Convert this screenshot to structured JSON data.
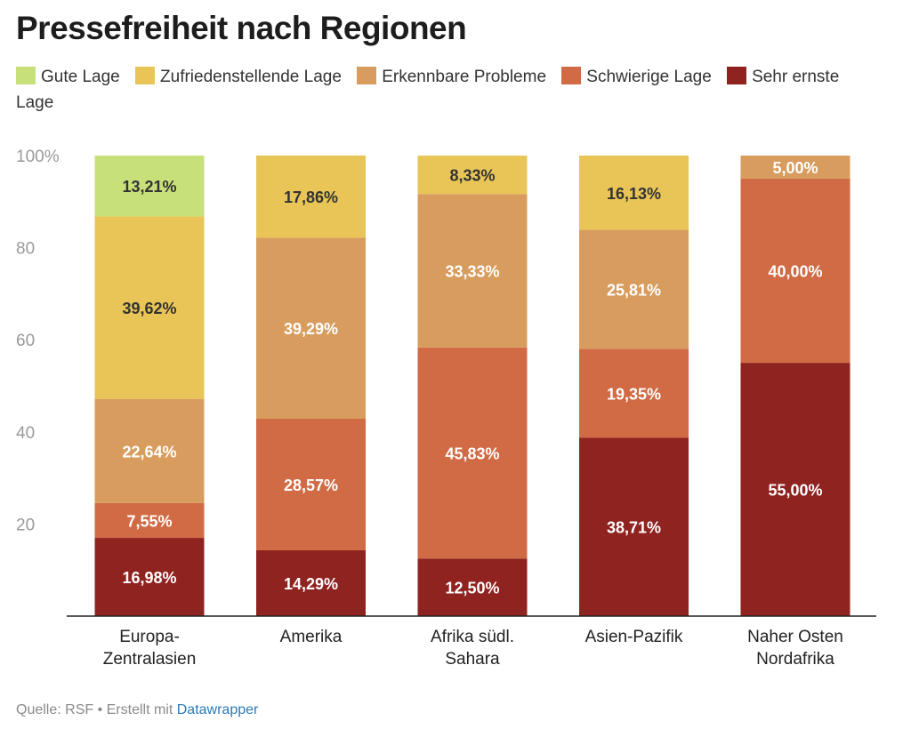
{
  "chart_data": {
    "type": "bar",
    "stacked": true,
    "title": "Pressefreiheit nach Regionen",
    "ylim": [
      0,
      100
    ],
    "yticks": [
      {
        "value": 20,
        "label": "20"
      },
      {
        "value": 40,
        "label": "40"
      },
      {
        "value": 60,
        "label": "60"
      },
      {
        "value": 80,
        "label": "80"
      },
      {
        "value": 100,
        "label": "100%"
      }
    ],
    "categories": [
      [
        "Europa-",
        "Zentralasien"
      ],
      [
        "Amerika"
      ],
      [
        "Afrika südl.",
        "Sahara"
      ],
      [
        "Asien-Pazifik"
      ],
      [
        "Naher Osten",
        "Nordafrika"
      ]
    ],
    "series": [
      {
        "name": "Sehr ernste Lage",
        "color": "#8f2320",
        "values": [
          16.98,
          14.29,
          12.5,
          38.71,
          55.0
        ],
        "labels": [
          "16,98%",
          "14,29%",
          "12,50%",
          "38,71%",
          "55,00%"
        ]
      },
      {
        "name": "Schwierige Lage",
        "color": "#d06b45",
        "values": [
          7.55,
          28.57,
          45.83,
          19.35,
          40.0
        ],
        "labels": [
          "7,55%",
          "28,57%",
          "45,83%",
          "19,35%",
          "40,00%"
        ]
      },
      {
        "name": "Erkennbare Probleme",
        "color": "#d89d5e",
        "values": [
          22.64,
          39.29,
          33.33,
          25.81,
          5.0
        ],
        "labels": [
          "22,64%",
          "39,29%",
          "33,33%",
          "25,81%",
          "5,00%"
        ]
      },
      {
        "name": "Zufriedenstellende Lage",
        "color": "#e8c556",
        "values": [
          39.62,
          17.86,
          8.33,
          16.13,
          0
        ],
        "labels": [
          "39,62%",
          "17,86%",
          "8,33%",
          "16,13%",
          ""
        ]
      },
      {
        "name": "Gute Lage",
        "color": "#c8e07a",
        "values": [
          13.21,
          0,
          0,
          0,
          0
        ],
        "labels": [
          "13,21%",
          "",
          "",
          "",
          ""
        ]
      }
    ],
    "legend_order": [
      "Gute Lage",
      "Zufriedenstellende Lage",
      "Erkennbare Probleme",
      "Schwierige Lage",
      "Sehr ernste Lage"
    ]
  },
  "footer": {
    "source": "Quelle: RSF • Erstellt mit ",
    "link": "Datawrapper"
  }
}
